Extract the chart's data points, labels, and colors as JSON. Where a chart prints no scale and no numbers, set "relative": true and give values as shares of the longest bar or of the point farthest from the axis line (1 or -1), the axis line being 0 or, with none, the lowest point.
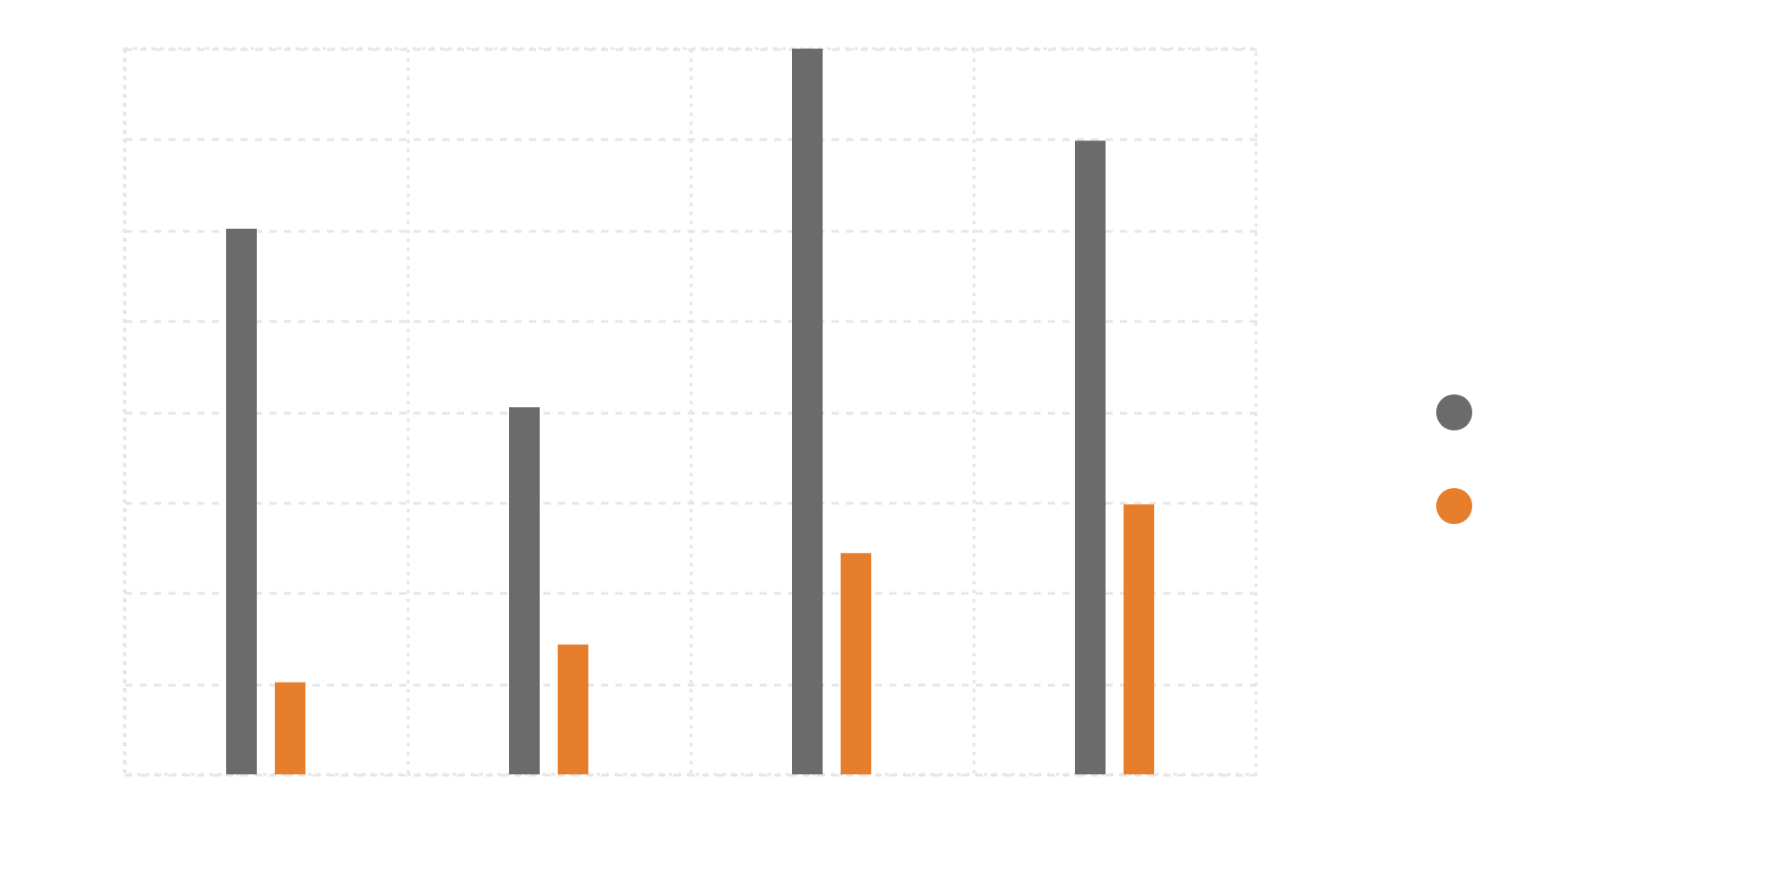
{
  "chart_data": {
    "type": "bar",
    "relative": true,
    "categories": [
      null,
      null,
      null,
      null
    ],
    "series": [
      {
        "color": "#6a6b6a",
        "values": [
          0.752,
          0.506,
          1,
          0.873
        ]
      },
      {
        "color": "#e67e2c",
        "values": [
          0.127,
          0.179,
          0.305,
          0.372
        ]
      }
    ],
    "grid": true
  }
}
